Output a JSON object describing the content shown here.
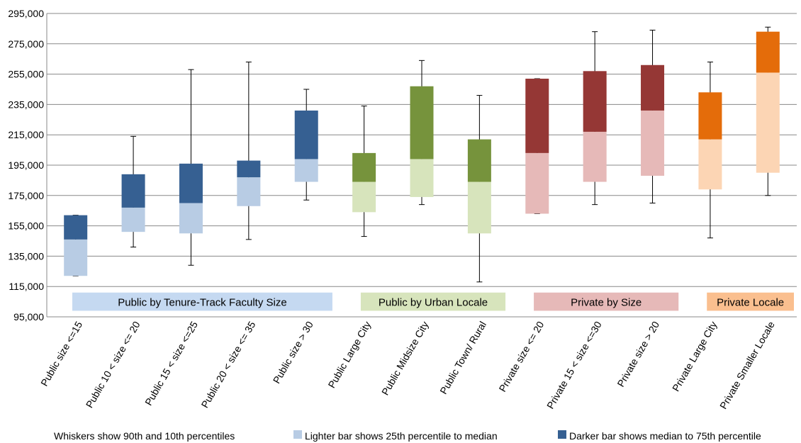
{
  "chart_data": {
    "type": "boxplot",
    "ylim": [
      95000,
      295000
    ],
    "yticks": [
      "95,000",
      "115,000",
      "135,000",
      "155,000",
      "175,000",
      "195,000",
      "215,000",
      "235,000",
      "255,000",
      "275,000",
      "295,000"
    ],
    "grid": true,
    "categories": [
      {
        "label": "Public size <=15",
        "p10": 122000,
        "p25": 122000,
        "median": 146000,
        "p75": 162000,
        "p90": 162000,
        "group": "public_size"
      },
      {
        "label": "Public 10 < size <= 20",
        "p10": 141000,
        "p25": 151000,
        "median": 167000,
        "p75": 189000,
        "p90": 214000,
        "group": "public_size"
      },
      {
        "label": "Public 15 < size <=25",
        "p10": 129000,
        "p25": 150000,
        "median": 170000,
        "p75": 196000,
        "p90": 258000,
        "group": "public_size"
      },
      {
        "label": "Public 20 < size <= 35",
        "p10": 146000,
        "p25": 168000,
        "median": 187000,
        "p75": 198000,
        "p90": 263000,
        "group": "public_size"
      },
      {
        "label": "Public size > 30",
        "p10": 172000,
        "p25": 184000,
        "median": 199000,
        "p75": 231000,
        "p90": 245000,
        "group": "public_size"
      },
      {
        "label": "Public Large City",
        "p10": 148000,
        "p25": 164000,
        "median": 184000,
        "p75": 203000,
        "p90": 234000,
        "group": "public_locale"
      },
      {
        "label": "Public Midsize City",
        "p10": 169000,
        "p25": 174000,
        "median": 199000,
        "p75": 247000,
        "p90": 264000,
        "group": "public_locale"
      },
      {
        "label": "Public Town/ Rural",
        "p10": 118000,
        "p25": 150000,
        "median": 184000,
        "p75": 212000,
        "p90": 241000,
        "group": "public_locale"
      },
      {
        "label": "Private size <= 20",
        "p10": 163000,
        "p25": 163000,
        "median": 203000,
        "p75": 252000,
        "p90": 252000,
        "group": "private_size"
      },
      {
        "label": "Private 15 < size <=30",
        "p10": 169000,
        "p25": 184000,
        "median": 217000,
        "p75": 257000,
        "p90": 283000,
        "group": "private_size"
      },
      {
        "label": "Private size > 20",
        "p10": 170000,
        "p25": 188000,
        "median": 231000,
        "p75": 261000,
        "p90": 284000,
        "group": "private_size"
      },
      {
        "label": "Private Large City",
        "p10": 147000,
        "p25": 179000,
        "median": 212000,
        "p75": 243000,
        "p90": 263000,
        "group": "private_locale"
      },
      {
        "label": "Private Smaller Locale",
        "p10": 175000,
        "p25": 190000,
        "median": 256000,
        "p75": 283000,
        "p90": 286000,
        "group": "private_locale"
      }
    ],
    "groups": {
      "public_size": {
        "label": "Public by Tenure-Track Faculty Size",
        "light": "#b8cce4",
        "dark": "#366092",
        "band": "#c5d9f1",
        "start": 0,
        "end": 4
      },
      "public_locale": {
        "label": "Public by Urban Locale",
        "light": "#d7e4bc",
        "dark": "#76933c",
        "band": "#d7e4bc",
        "start": 5,
        "end": 7
      },
      "private_size": {
        "label": "Private by Size",
        "light": "#e6b9b8",
        "dark": "#953735",
        "band": "#e6b9b8",
        "start": 8,
        "end": 10
      },
      "private_locale": {
        "label": "Private Locale",
        "light": "#fcd5b4",
        "dark": "#e46c0a",
        "band": "#fabf8f",
        "start": 11,
        "end": 12
      }
    },
    "legend": {
      "whiskers": "Whiskers show 90th and 10th percentiles",
      "lighter": "Lighter bar shows 25th percentile to median",
      "darker": "Darker bar shows median to 75th percentile",
      "lighter_color": "#b8cce4",
      "darker_color": "#366092"
    }
  }
}
